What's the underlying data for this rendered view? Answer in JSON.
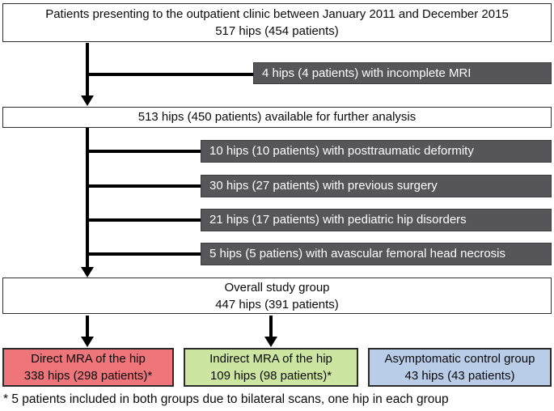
{
  "diagram": {
    "enrollment": {
      "line1": "Patients presenting to the outpatient clinic between January 2011 and December 2015",
      "line2": "517 hips (454 patients)"
    },
    "exclusion_incomplete_mri": "4 hips (4 patients) with incomplete MRI",
    "available": "513 hips (450 patients) available for further analysis",
    "exclusions": [
      "10 hips (10 patients) with posttraumatic deformity",
      "30 hips (27 patients) with previous surgery",
      "21 hips (17 patients) with pediatric hip disorders",
      "5 hips (5 patiens) with avascular femoral head necrosis"
    ],
    "overall": {
      "line1": "Overall study group",
      "line2": "447 hips (391 patients)"
    },
    "groups": [
      {
        "label": "Direct MRA of the hip",
        "count": "338 hips (298 patients)*"
      },
      {
        "label": "Indirect MRA of the hip",
        "count": "109 hips (98 patients)*"
      },
      {
        "label": "Asymptomatic control group",
        "count": "43 hips (43 patients)"
      }
    ],
    "footnote": "* 5 patients included in both groups due to bilateral scans, one hip in each group"
  },
  "colors": {
    "exclusion_bg": "#565658",
    "exclusion_text": "#ffffff",
    "direct_mra_bg": "#ee767b",
    "indirect_mra_bg": "#cce6a2",
    "control_bg": "#b9cce8",
    "connector": "#000000"
  }
}
